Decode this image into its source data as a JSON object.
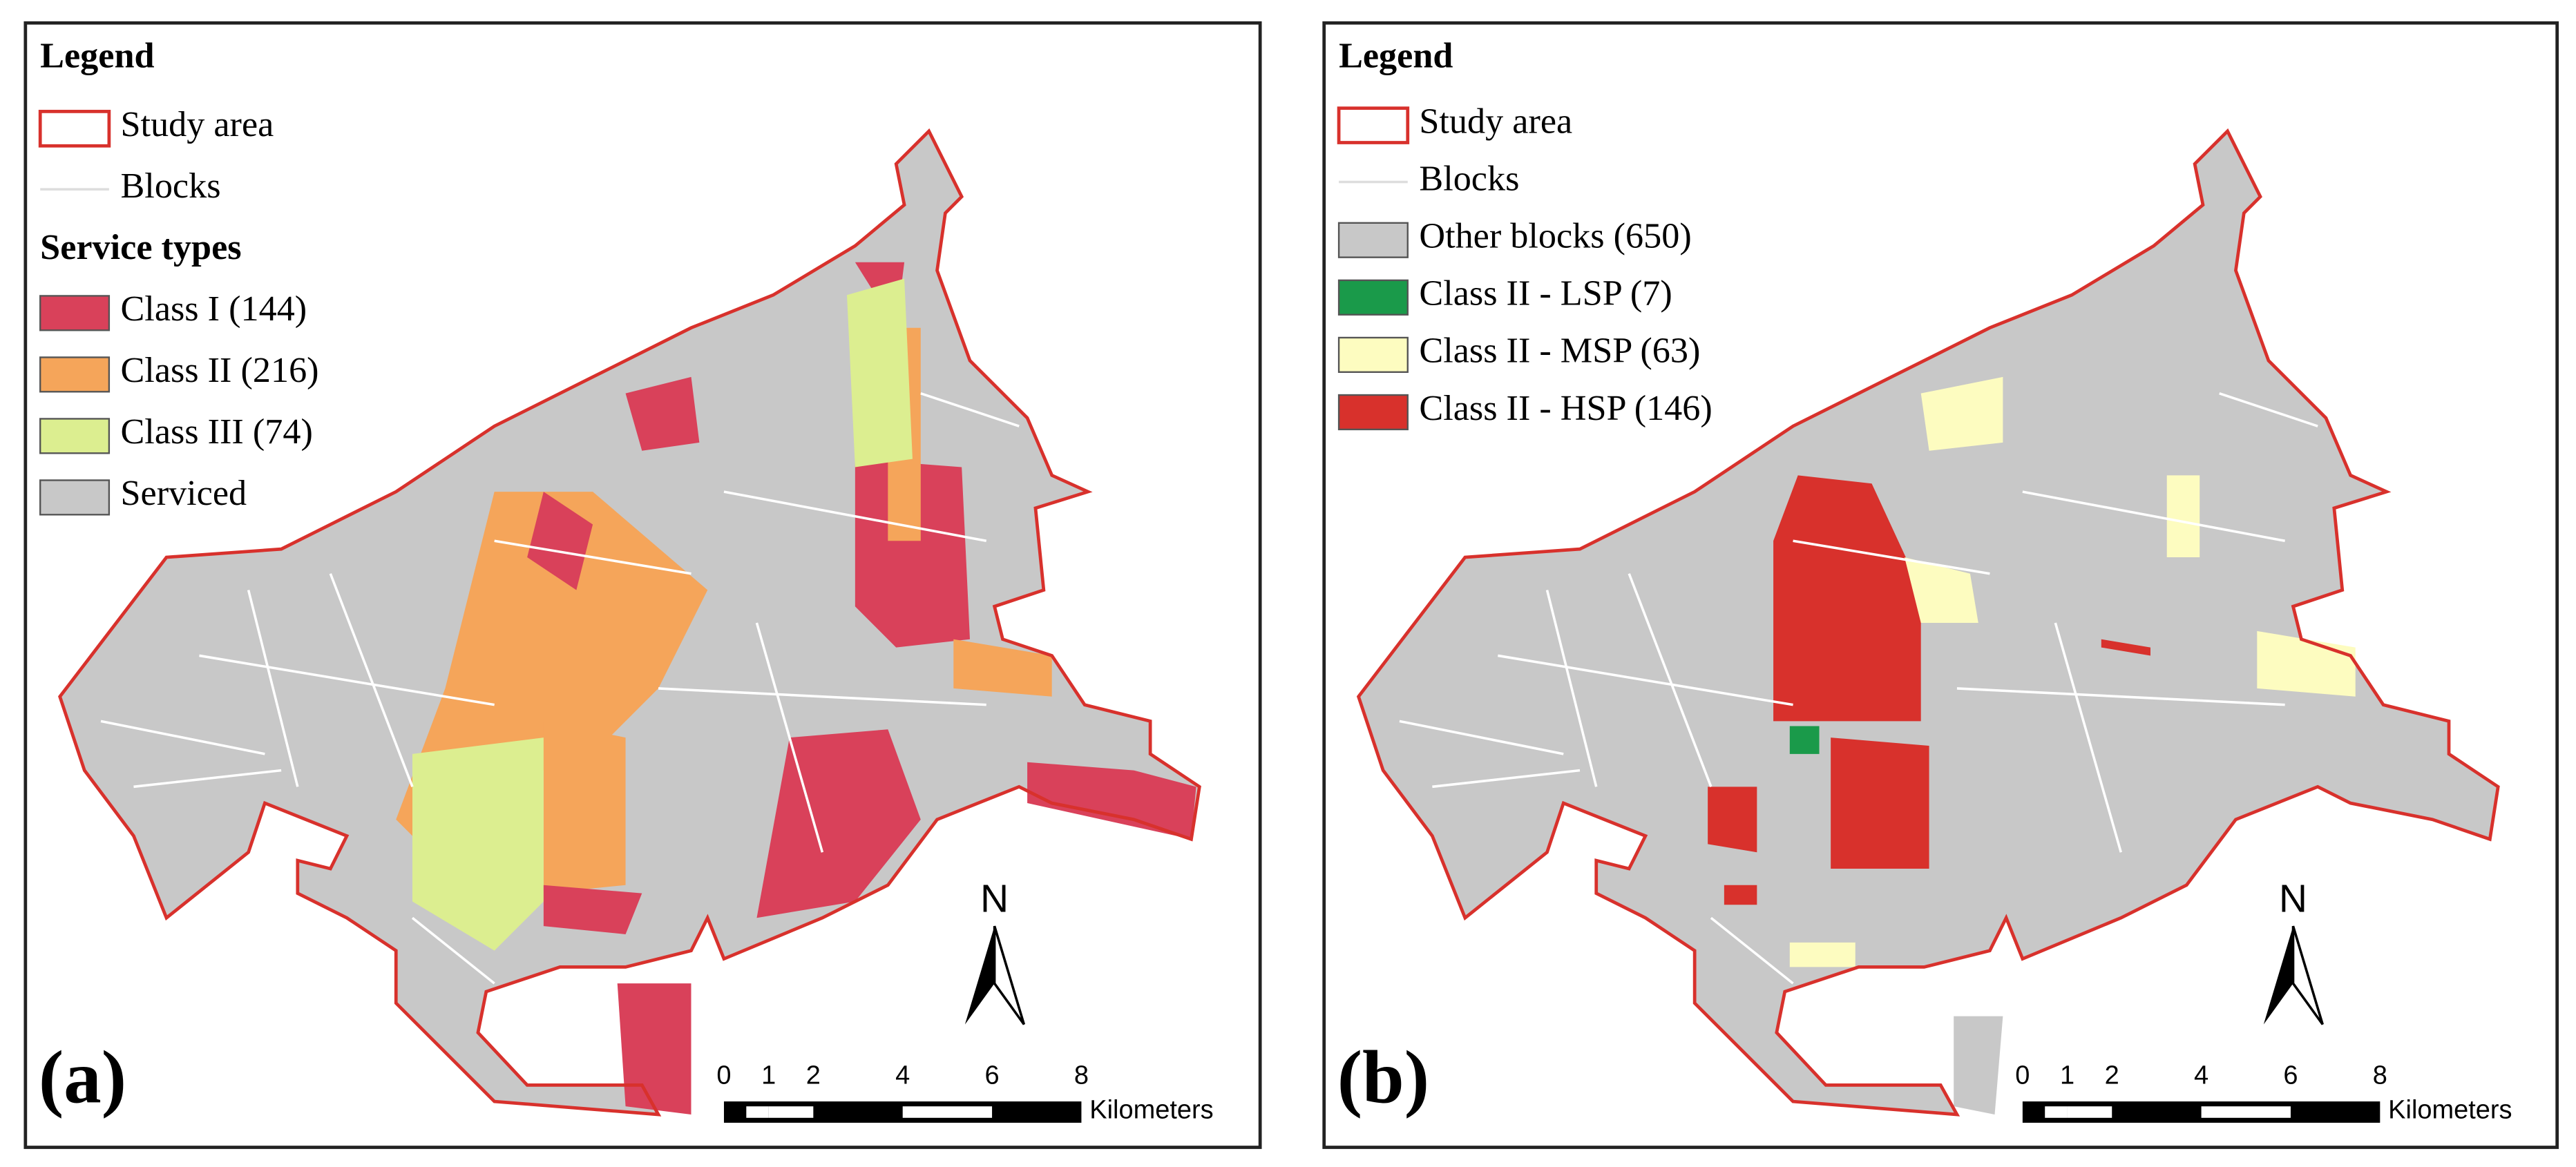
{
  "panels": [
    {
      "label": "(a)",
      "legend": {
        "title": "Legend",
        "study_area": "Study area",
        "blocks": "Blocks",
        "subtitle": "Service types",
        "items": [
          {
            "text": "Class I (144)",
            "color": "#d9415a"
          },
          {
            "text": "Class II (216)",
            "color": "#f5a55a"
          },
          {
            "text": "Class III (74)",
            "color": "#dcee90"
          },
          {
            "text": "Serviced",
            "color": "#c8c8c8"
          }
        ]
      }
    },
    {
      "label": "(b)",
      "legend": {
        "title": "Legend",
        "study_area": "Study area",
        "blocks": "Blocks",
        "items": [
          {
            "text": "Other blocks (650)",
            "color": "#c8c8c8"
          },
          {
            "text": "Class II - LSP (7)",
            "color": "#1a9a4a"
          },
          {
            "text": "Class II - MSP (63)",
            "color": "#fdfcc0"
          },
          {
            "text": "Class II - HSP (146)",
            "color": "#d8312c"
          }
        ]
      }
    }
  ],
  "north": "N",
  "scale_bar": {
    "ticks": [
      0,
      1,
      2,
      4,
      6,
      8
    ],
    "unit": "Kilometers"
  }
}
